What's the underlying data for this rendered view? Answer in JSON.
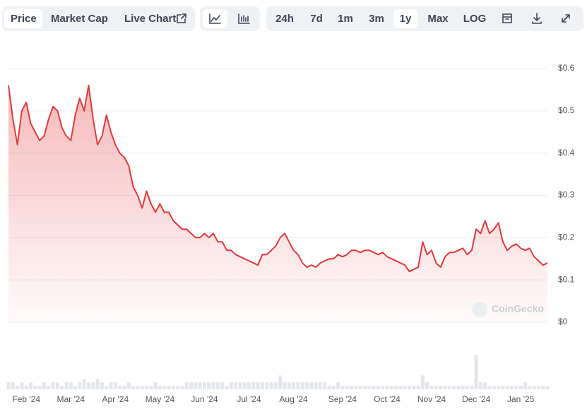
{
  "toolbar": {
    "tabs": [
      "Price",
      "Market Cap",
      "Live Chart"
    ],
    "active_tab": 0,
    "ranges": [
      "24h",
      "7d",
      "1m",
      "3m",
      "1y",
      "Max",
      "LOG"
    ],
    "active_range": 4
  },
  "watermark": "CoinGecko",
  "chart_data": {
    "type": "line",
    "color": "#e5383b",
    "grid": true,
    "y_axis_side": "right",
    "ylim": [
      0,
      0.6
    ],
    "yticks": [
      {
        "value": 0,
        "label": "$0"
      },
      {
        "value": 0.1,
        "label": "$0.1"
      },
      {
        "value": 0.2,
        "label": "$0.2"
      },
      {
        "value": 0.3,
        "label": "$0.3"
      },
      {
        "value": 0.4,
        "label": "$0.4"
      },
      {
        "value": 0.5,
        "label": "$0.5"
      },
      {
        "value": 0.6,
        "label": "$0.6"
      }
    ],
    "categories": [
      null,
      null,
      null,
      null,
      "Feb '24",
      null,
      null,
      null,
      null,
      null,
      null,
      null,
      null,
      null,
      "Mar '24",
      null,
      null,
      null,
      null,
      null,
      null,
      null,
      null,
      null,
      "Apr '24",
      null,
      null,
      null,
      null,
      null,
      null,
      null,
      null,
      null,
      "May '24",
      null,
      null,
      null,
      null,
      null,
      null,
      null,
      null,
      null,
      "Jun '24",
      null,
      null,
      null,
      null,
      null,
      null,
      null,
      null,
      null,
      "Jul '24",
      null,
      null,
      null,
      null,
      null,
      null,
      null,
      null,
      null,
      "Aug '24",
      null,
      null,
      null,
      null,
      null,
      null,
      null,
      null,
      null,
      null,
      "Sep '24",
      null,
      null,
      null,
      null,
      null,
      null,
      null,
      null,
      null,
      "Oct '24",
      null,
      null,
      null,
      null,
      null,
      null,
      null,
      null,
      null,
      "Nov '24",
      null,
      null,
      null,
      null,
      null,
      null,
      null,
      null,
      null,
      "Dec '24",
      null,
      null,
      null,
      null,
      null,
      null,
      null,
      null,
      null,
      "Jan '25",
      null,
      null,
      null,
      null,
      null,
      null
    ],
    "series": [
      {
        "name": "Price",
        "color": "#e5383b",
        "values": [
          0.56,
          0.48,
          0.42,
          0.5,
          0.52,
          0.47,
          0.45,
          0.43,
          0.44,
          0.48,
          0.51,
          0.5,
          0.46,
          0.44,
          0.43,
          0.49,
          0.53,
          0.5,
          0.56,
          0.48,
          0.42,
          0.44,
          0.49,
          0.45,
          0.42,
          0.4,
          0.39,
          0.37,
          0.32,
          0.3,
          0.27,
          0.31,
          0.28,
          0.26,
          0.28,
          0.26,
          0.26,
          0.24,
          0.23,
          0.22,
          0.22,
          0.21,
          0.2,
          0.2,
          0.21,
          0.2,
          0.21,
          0.19,
          0.19,
          0.17,
          0.17,
          0.16,
          0.155,
          0.15,
          0.145,
          0.14,
          0.135,
          0.16,
          0.16,
          0.17,
          0.18,
          0.2,
          0.21,
          0.19,
          0.17,
          0.16,
          0.14,
          0.13,
          0.135,
          0.13,
          0.14,
          0.145,
          0.15,
          0.15,
          0.16,
          0.155,
          0.16,
          0.17,
          0.17,
          0.165,
          0.17,
          0.17,
          0.165,
          0.16,
          0.165,
          0.155,
          0.15,
          0.145,
          0.14,
          0.135,
          0.12,
          0.125,
          0.13,
          0.19,
          0.16,
          0.17,
          0.14,
          0.13,
          0.155,
          0.165,
          0.165,
          0.17,
          0.175,
          0.16,
          0.17,
          0.22,
          0.21,
          0.24,
          0.21,
          0.22,
          0.235,
          0.19,
          0.17,
          0.18,
          0.185,
          0.175,
          0.17,
          0.175,
          0.155,
          0.145,
          0.135,
          0.14
        ]
      }
    ],
    "volume": [
      2,
      2,
      1,
      2,
      1,
      2,
      1,
      1,
      2,
      1,
      2,
      2,
      1,
      2,
      2,
      1,
      2,
      3,
      2,
      2,
      3,
      2,
      1,
      2,
      2,
      1,
      1,
      2,
      1,
      1,
      1,
      1,
      1,
      2,
      1,
      1,
      1,
      1,
      1,
      1,
      2,
      2,
      2,
      2,
      2,
      2,
      2,
      2,
      2,
      1,
      2,
      2,
      2,
      2,
      2,
      2,
      2,
      2,
      2,
      2,
      2,
      4,
      2,
      2,
      2,
      2,
      2,
      2,
      2,
      2,
      2,
      2,
      1,
      1,
      2,
      1,
      1,
      1,
      1,
      1,
      1,
      1,
      1,
      1,
      1,
      1,
      1,
      1,
      1,
      1,
      1,
      1,
      1,
      4,
      2,
      1,
      1,
      1,
      1,
      1,
      1,
      1,
      1,
      1,
      1,
      10,
      2,
      2,
      1,
      1,
      1,
      1,
      1,
      1,
      1,
      1,
      2,
      1,
      1,
      1,
      1,
      1
    ]
  }
}
